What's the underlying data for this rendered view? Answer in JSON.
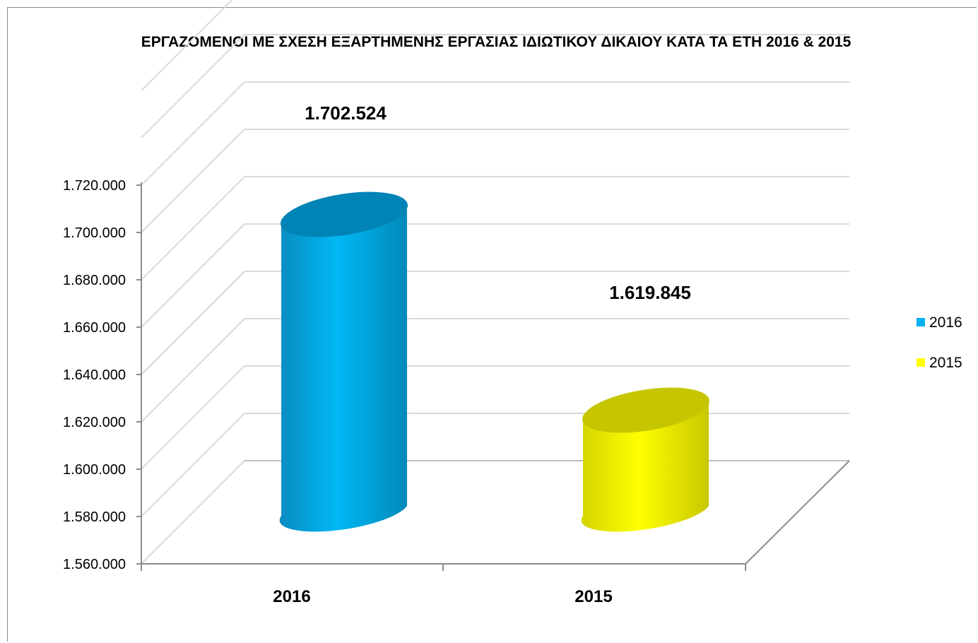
{
  "chart_data": {
    "type": "bar",
    "title": "ΕΡΓΑΖΟΜΕΝΟΙ ΜΕ ΣΧΕΣΗ ΕΞΑΡΤΗΜΕΝΗΣ ΕΡΓΑΣΙΑΣ ΙΔΙΩΤΙΚΟΥ ΔΙΚΑΙΟΥ ΚΑΤΑ ΤΑ ΕΤΗ 2016 & 2015",
    "xlabel": "",
    "ylabel": "",
    "categories": [
      "2016",
      "2015"
    ],
    "values": [
      1702524,
      1619845
    ],
    "data_labels": [
      "1.702.524",
      "1.619.845"
    ],
    "series": [
      {
        "name": "2016",
        "values": [
          1702524,
          null
        ],
        "color": "#00B0F0"
      },
      {
        "name": "2015",
        "values": [
          null,
          1619845
        ],
        "color": "#FFFF00"
      }
    ],
    "ylim": [
      1560000,
      1720000
    ],
    "y_ticks": [
      "1.560.000",
      "1.580.000",
      "1.600.000",
      "1.620.000",
      "1.640.000",
      "1.660.000",
      "1.680.000",
      "1.700.000",
      "1.720.000"
    ],
    "y_tick_values": [
      1560000,
      1580000,
      1600000,
      1620000,
      1640000,
      1660000,
      1680000,
      1700000,
      1720000
    ],
    "legend_position": "right",
    "grid": true,
    "shape": "3d-cylinder"
  }
}
